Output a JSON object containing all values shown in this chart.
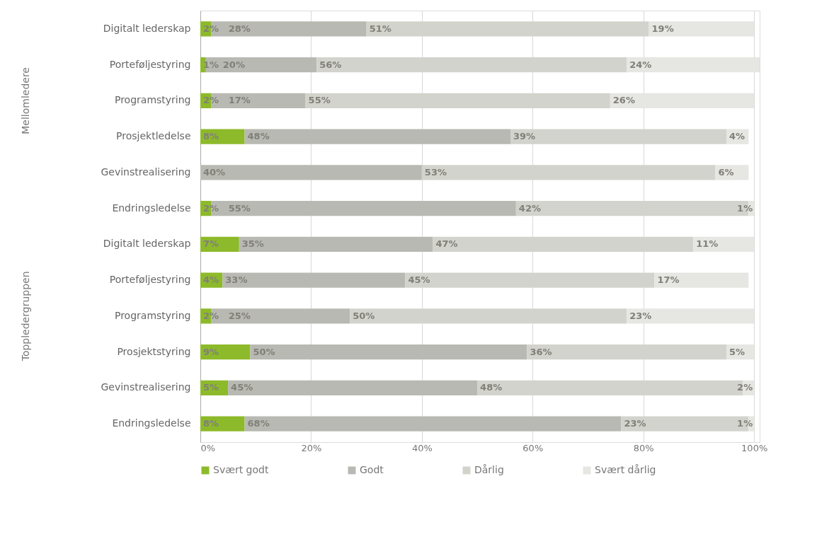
{
  "chart_data": {
    "type": "bar",
    "orientation": "horizontal",
    "stacked": true,
    "categories": [
      "Digitalt lederskap",
      "Porteføljestyring",
      "Programstyring",
      "Prosjektledelse",
      "Gevinstrealisering",
      "Endringsledelse",
      "Digitalt lederskap",
      "Porteføljestyring",
      "Programstyring",
      "Prosjektstyring",
      "Gevinstrealisering",
      "Endringsledelse"
    ],
    "series": [
      {
        "name": "Svært godt",
        "color": "#8dba2a",
        "values": [
          2,
          1,
          2,
          8,
          null,
          2,
          7,
          4,
          2,
          9,
          5,
          8
        ],
        "value_labels": [
          "2%",
          "1%",
          "2%",
          "8%",
          null,
          "2%",
          "7%",
          "4%",
          "2%",
          "9%",
          "5%",
          "8%"
        ]
      },
      {
        "name": "Godt",
        "color": "#b9b9b3",
        "values": [
          28,
          20,
          17,
          48,
          40,
          55,
          35,
          33,
          25,
          50,
          45,
          68
        ],
        "value_labels": [
          "28%",
          "20%",
          "17%",
          "48%",
          "40%",
          "55%",
          "35%",
          "33%",
          "25%",
          "50%",
          "45%",
          "68%"
        ]
      },
      {
        "name": "Dårlig",
        "color": "#d3d3cd",
        "values": [
          51,
          56,
          55,
          39,
          53,
          42,
          47,
          45,
          50,
          36,
          48,
          23
        ],
        "value_labels": [
          "51%",
          "56%",
          "55%",
          "39%",
          "53%",
          "42%",
          "47%",
          "45%",
          "50%",
          "36%",
          "48%",
          "23%"
        ]
      },
      {
        "name": "Svært dårlig",
        "color": "#e6e6e2",
        "values": [
          19,
          24,
          26,
          4,
          6,
          1,
          11,
          17,
          23,
          5,
          2,
          1
        ],
        "value_labels": [
          "19%",
          "24%",
          "26%",
          "4%",
          "6%",
          "1%",
          "11%",
          "17%",
          "23%",
          "5%",
          "2%",
          "1%"
        ]
      }
    ],
    "xlim": [
      0,
      101
    ],
    "xticks": [
      {
        "value": 0,
        "label": "0%"
      },
      {
        "value": 20,
        "label": "20%"
      },
      {
        "value": 40,
        "label": "40%"
      },
      {
        "value": 60,
        "label": "60%"
      },
      {
        "value": 80,
        "label": "80%"
      },
      {
        "value": 100,
        "label": "100%"
      }
    ],
    "grid": "x",
    "legend": "bottom",
    "annotations": [
      "Mellomledere",
      "Toppledergruppen"
    ]
  }
}
